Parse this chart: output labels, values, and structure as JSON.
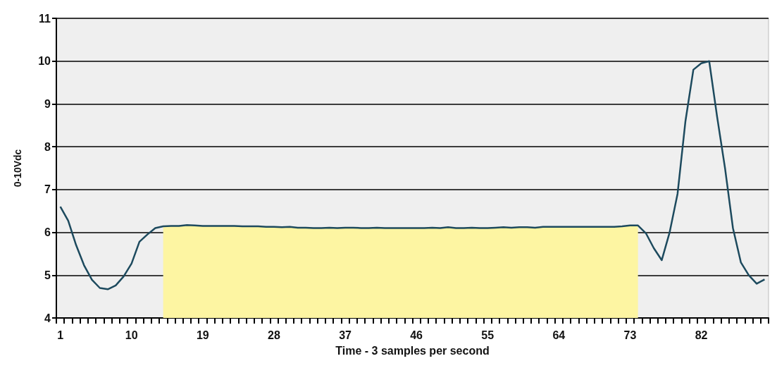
{
  "chart_data": {
    "type": "line",
    "xlabel": "Time - 3 samples per second",
    "ylabel": "0-10Vdc",
    "categories": [
      "1",
      null,
      null,
      null,
      null,
      null,
      null,
      null,
      null,
      "10",
      null,
      null,
      null,
      null,
      null,
      null,
      null,
      null,
      "19",
      null,
      null,
      null,
      null,
      null,
      null,
      null,
      null,
      "28",
      null,
      null,
      null,
      null,
      null,
      null,
      null,
      null,
      "37",
      null,
      null,
      null,
      null,
      null,
      null,
      null,
      null,
      "46",
      null,
      null,
      null,
      null,
      null,
      null,
      null,
      null,
      "55",
      null,
      null,
      null,
      null,
      null,
      null,
      null,
      null,
      "64",
      null,
      null,
      null,
      null,
      null,
      null,
      null,
      null,
      "73",
      null,
      null,
      null,
      null,
      null,
      null,
      null,
      null,
      "82",
      null,
      null,
      null,
      null,
      null,
      null,
      null,
      null
    ],
    "series": [
      {
        "type": "area",
        "color": "#fdf5a2",
        "values": [
          null,
          null,
          null,
          null,
          null,
          null,
          null,
          null,
          null,
          null,
          null,
          null,
          null,
          6.14,
          6.15,
          6.15,
          6.17,
          6.16,
          6.15,
          6.15,
          6.15,
          6.15,
          6.15,
          6.14,
          6.14,
          6.14,
          6.13,
          6.13,
          6.12,
          6.13,
          6.11,
          6.11,
          6.1,
          6.1,
          6.11,
          6.1,
          6.11,
          6.11,
          6.1,
          6.1,
          6.11,
          6.1,
          6.1,
          6.1,
          6.1,
          6.1,
          6.1,
          6.11,
          6.1,
          6.12,
          6.1,
          6.1,
          6.11,
          6.1,
          6.1,
          6.11,
          6.12,
          6.11,
          6.12,
          6.12,
          6.11,
          6.13,
          6.13,
          6.13,
          6.13,
          6.13,
          6.13,
          6.13,
          6.13,
          6.13,
          6.13,
          6.14,
          6.16,
          6.16,
          null,
          null,
          null,
          null,
          null,
          null,
          null,
          null,
          null,
          null,
          null,
          null,
          null,
          null,
          null,
          null
        ]
      },
      {
        "color": "#1d4a5e",
        "values": [
          6.6,
          6.27,
          5.7,
          5.23,
          4.89,
          4.7,
          4.67,
          4.76,
          4.97,
          5.27,
          5.78,
          5.95,
          6.1,
          6.14,
          6.15,
          6.15,
          6.17,
          6.16,
          6.15,
          6.15,
          6.15,
          6.15,
          6.15,
          6.14,
          6.14,
          6.14,
          6.13,
          6.13,
          6.12,
          6.13,
          6.11,
          6.11,
          6.1,
          6.1,
          6.11,
          6.1,
          6.11,
          6.11,
          6.1,
          6.1,
          6.11,
          6.1,
          6.1,
          6.1,
          6.1,
          6.1,
          6.1,
          6.11,
          6.1,
          6.12,
          6.1,
          6.1,
          6.11,
          6.1,
          6.1,
          6.11,
          6.12,
          6.11,
          6.12,
          6.12,
          6.11,
          6.13,
          6.13,
          6.13,
          6.13,
          6.13,
          6.13,
          6.13,
          6.13,
          6.13,
          6.13,
          6.14,
          6.16,
          6.16,
          5.98,
          5.63,
          5.35,
          6.0,
          6.9,
          8.6,
          9.8,
          9.95,
          10.0,
          8.7,
          7.5,
          6.1,
          5.3,
          5.0,
          4.8,
          4.9
        ]
      }
    ],
    "ylim": [
      4,
      11
    ],
    "yticks": [
      4,
      5,
      6,
      7,
      8,
      9,
      10,
      11
    ],
    "grid": "y",
    "marker": "none"
  }
}
